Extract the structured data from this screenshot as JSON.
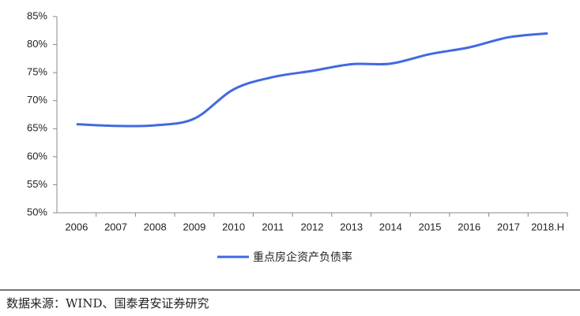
{
  "chart_data": {
    "type": "line",
    "categories": [
      "2006",
      "2007",
      "2008",
      "2009",
      "2010",
      "2011",
      "2012",
      "2013",
      "2014",
      "2015",
      "2016",
      "2017",
      "2018.H"
    ],
    "series": [
      {
        "name": "重点房企资产负债率",
        "color": "#4169e1",
        "values": [
          65.8,
          65.5,
          65.6,
          66.8,
          72.0,
          74.2,
          75.3,
          76.5,
          76.6,
          78.3,
          79.5,
          81.3,
          82.0
        ]
      }
    ],
    "ylim": [
      50,
      85
    ],
    "yticks": [
      {
        "value": 50,
        "label": "50%"
      },
      {
        "value": 55,
        "label": "55%"
      },
      {
        "value": 60,
        "label": "60%"
      },
      {
        "value": 65,
        "label": "65%"
      },
      {
        "value": 70,
        "label": "70%"
      },
      {
        "value": 75,
        "label": "75%"
      },
      {
        "value": 80,
        "label": "80%"
      },
      {
        "value": 85,
        "label": "85%"
      }
    ],
    "grid": false,
    "legend": "bottom"
  },
  "source": "数据来源：WIND、国泰君安证券研究"
}
